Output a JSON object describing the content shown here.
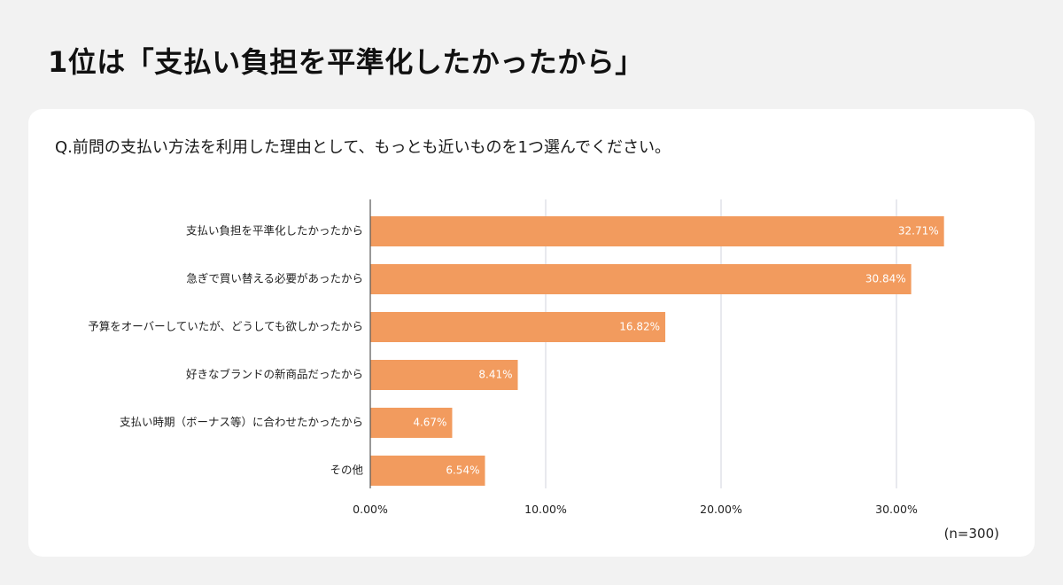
{
  "headline": "1位は「支払い負担を平準化したかったから」",
  "question": "Q.前問の支払い方法を利用した理由として、もっとも近いものを1つ選んでください。",
  "sample_size": "(n=300)",
  "colors": {
    "bar": "#f29b5e",
    "grid": "#d0d3dc",
    "axis": "#555555"
  },
  "chart_data": {
    "type": "bar",
    "orientation": "horizontal",
    "categories": [
      "支払い負担を平準化したかったから",
      "急ぎで買い替える必要があったから",
      "予算をオーバーしていたが、どうしても欲しかったから",
      "好きなブランドの新商品だったから",
      "支払い時期（ボーナス等）に合わせたかったから",
      "その他"
    ],
    "values": [
      32.71,
      30.84,
      16.82,
      8.41,
      4.67,
      6.54
    ],
    "value_labels": [
      "32.71%",
      "30.84%",
      "16.82%",
      "8.41%",
      "4.67%",
      "6.54%"
    ],
    "x_ticks": [
      0,
      10,
      20,
      30
    ],
    "x_tick_labels": [
      "0.00%",
      "10.00%",
      "20.00%",
      "30.00%"
    ],
    "xlim": [
      0,
      33
    ],
    "grid": true,
    "legend": "none"
  }
}
